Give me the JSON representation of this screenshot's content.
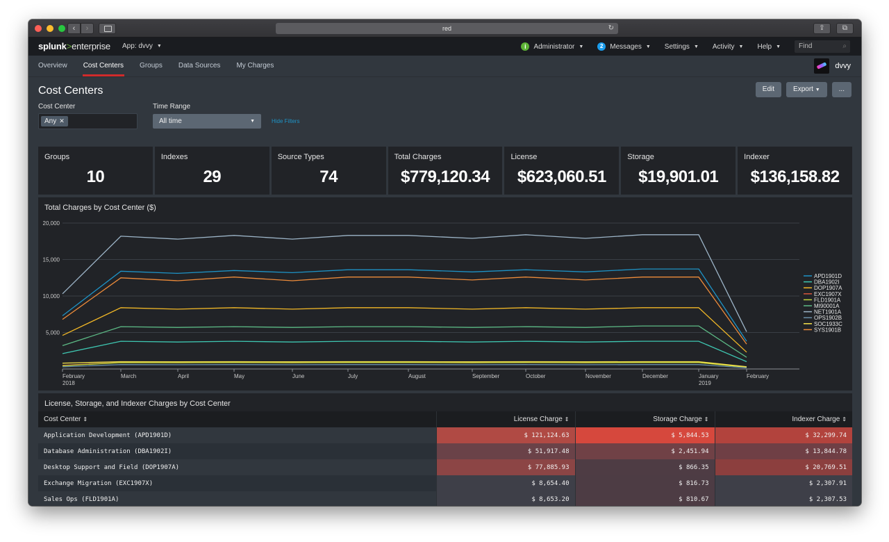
{
  "browser": {
    "url": "red"
  },
  "splunkbar": {
    "logo_main": "splunk",
    "logo_gt": ">",
    "logo_product": "enterprise",
    "app_menu": "App: dvvy",
    "admin_label": "Administrator",
    "admin_badge": "i",
    "messages_count": "2",
    "messages_label": "Messages",
    "settings_label": "Settings",
    "activity_label": "Activity",
    "help_label": "Help",
    "find_placeholder": "Find"
  },
  "appnav": {
    "tabs": [
      "Overview",
      "Cost Centers",
      "Groups",
      "Data Sources",
      "My Charges"
    ],
    "active_tab": "Cost Centers",
    "app_name": "dvvy"
  },
  "dashboard": {
    "title": "Cost Centers",
    "buttons": {
      "edit": "Edit",
      "export": "Export",
      "more": "..."
    },
    "filters": {
      "cost_center_label": "Cost Center",
      "cost_center_value": "Any",
      "time_range_label": "Time Range",
      "time_range_value": "All time",
      "hide_filters": "Hide Filters"
    }
  },
  "singles": [
    {
      "title": "Groups",
      "value": "10"
    },
    {
      "title": "Indexes",
      "value": "29"
    },
    {
      "title": "Source Types",
      "value": "74"
    },
    {
      "title": "Total Charges",
      "value": "$779,120.34"
    },
    {
      "title": "License",
      "value": "$623,060.51"
    },
    {
      "title": "Storage",
      "value": "$19,901.01"
    },
    {
      "title": "Indexer",
      "value": "$136,158.82"
    }
  ],
  "chart_data": {
    "type": "line",
    "title": "Total Charges by Cost Center ($)",
    "x": [
      "February 2018",
      "March",
      "April",
      "May",
      "June",
      "July",
      "August",
      "September",
      "October",
      "November",
      "December",
      "January 2019",
      "February"
    ],
    "y_ticks": [
      "20,000",
      "15,000",
      "10,000",
      "5,000"
    ],
    "ylim": [
      0,
      20000
    ],
    "grid": true,
    "legend_placement": "right",
    "series": [
      {
        "name": "APD1901D",
        "color": "#1e93c6",
        "values": [
          7300,
          13400,
          13100,
          13500,
          13200,
          13600,
          13600,
          13300,
          13600,
          13300,
          13700,
          13700,
          3800
        ]
      },
      {
        "name": "DBA1902I",
        "color": "#3ec6b1",
        "values": [
          2100,
          3800,
          3700,
          3800,
          3700,
          3800,
          3800,
          3700,
          3800,
          3700,
          3800,
          3800,
          1000
        ]
      },
      {
        "name": "DOP1907A",
        "color": "#f2b827",
        "values": [
          4600,
          8400,
          8200,
          8400,
          8200,
          8400,
          8400,
          8200,
          8400,
          8200,
          8400,
          8400,
          2300
        ]
      },
      {
        "name": "EXC1907X",
        "color": "#d6563c",
        "values": [
          500,
          900,
          860,
          900,
          860,
          900,
          900,
          860,
          900,
          860,
          900,
          900,
          250
        ]
      },
      {
        "name": "FLD1901A",
        "color": "#c0d53c",
        "values": [
          450,
          880,
          860,
          890,
          860,
          890,
          890,
          860,
          890,
          860,
          890,
          890,
          230
        ]
      },
      {
        "name": "MI90001A",
        "color": "#5dbb86",
        "values": [
          3200,
          5800,
          5700,
          5800,
          5700,
          5800,
          5800,
          5700,
          5800,
          5700,
          5900,
          5900,
          1600
        ]
      },
      {
        "name": "NET1901A",
        "color": "#9db5c8",
        "values": [
          10300,
          18200,
          17800,
          18300,
          17800,
          18300,
          18300,
          17900,
          18400,
          17900,
          18400,
          18400,
          5100
        ]
      },
      {
        "name": "OPS1902B",
        "color": "#6a8fa7",
        "values": [
          300,
          600,
          580,
          600,
          580,
          600,
          600,
          580,
          600,
          580,
          600,
          600,
          150
        ]
      },
      {
        "name": "SOC1933C",
        "color": "#f7e34b",
        "values": [
          800,
          1000,
          980,
          1000,
          980,
          1000,
          1000,
          980,
          1000,
          980,
          1000,
          1000,
          300
        ]
      },
      {
        "name": "SYS1901B",
        "color": "#ed8b3a",
        "values": [
          6800,
          12500,
          12100,
          12600,
          12100,
          12600,
          12600,
          12200,
          12600,
          12200,
          12600,
          12600,
          3400
        ]
      }
    ]
  },
  "table": {
    "title": "License, Storage, and Indexer Charges by Cost Center",
    "columns": [
      "Cost Center",
      "License Charge",
      "Storage Charge",
      "Indexer Charge"
    ],
    "rows": [
      {
        "name": "Application Development (APD1901D)",
        "license": "$ 121,124.63",
        "storage": "$ 5,844.53",
        "indexer": "$ 32,299.74",
        "lc": "#b04a44",
        "sc": "#d6483d",
        "ic": "#b2433d"
      },
      {
        "name": "Database Administration (DBA1902I)",
        "license": "$ 51,917.48",
        "storage": "$ 2,451.94",
        "indexer": "$ 13,844.78",
        "lc": "#6a4248",
        "sc": "#704146",
        "ic": "#6f3f45"
      },
      {
        "name": "Desktop Support and Field (DOP1907A)",
        "license": "$ 77,885.93",
        "storage": "$ 866.35",
        "indexer": "$ 20,769.51",
        "lc": "#8c4545",
        "sc": "#4e3c44",
        "ic": "#8c3f3e"
      },
      {
        "name": "Exchange Migration (EXC1907X)",
        "license": "$ 8,654.40",
        "storage": "$ 816.73",
        "indexer": "$ 2,307.91",
        "lc": "#3e3f48",
        "sc": "#4d3c44",
        "ic": "#3e3f48"
      },
      {
        "name": "Sales Ops (FLD1901A)",
        "license": "$ 8,653.20",
        "storage": "$ 810.67",
        "indexer": "$ 2,307.53",
        "lc": "#3e3f48",
        "sc": "#4d3c44",
        "ic": "#3e3f48"
      }
    ]
  }
}
